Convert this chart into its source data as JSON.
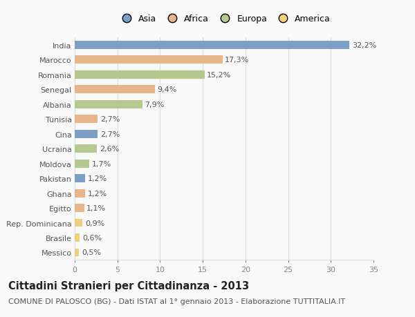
{
  "countries": [
    "India",
    "Marocco",
    "Romania",
    "Senegal",
    "Albania",
    "Tunisia",
    "Cina",
    "Ucraina",
    "Moldova",
    "Pakistan",
    "Ghana",
    "Egitto",
    "Rep. Dominicana",
    "Brasile",
    "Messico"
  ],
  "values": [
    32.2,
    17.3,
    15.2,
    9.4,
    7.9,
    2.7,
    2.7,
    2.6,
    1.7,
    1.2,
    1.2,
    1.1,
    0.9,
    0.6,
    0.5
  ],
  "labels": [
    "32,2%",
    "17,3%",
    "15,2%",
    "9,4%",
    "7,9%",
    "2,7%",
    "2,7%",
    "2,6%",
    "1,7%",
    "1,2%",
    "1,2%",
    "1,1%",
    "0,9%",
    "0,6%",
    "0,5%"
  ],
  "continents": [
    "Asia",
    "Africa",
    "Europa",
    "Africa",
    "Europa",
    "Africa",
    "Asia",
    "Europa",
    "Europa",
    "Asia",
    "Africa",
    "Africa",
    "America",
    "America",
    "America"
  ],
  "colors": {
    "Asia": "#7b9fc7",
    "Africa": "#e8b48a",
    "Europa": "#b5c98e",
    "America": "#f0d080"
  },
  "legend_order": [
    "Asia",
    "Africa",
    "Europa",
    "America"
  ],
  "title": "Cittadini Stranieri per Cittadinanza - 2013",
  "subtitle": "COMUNE DI PALOSCO (BG) - Dati ISTAT al 1° gennaio 2013 - Elaborazione TUTTITALIA.IT",
  "xlim": [
    0,
    35
  ],
  "xticks": [
    0,
    5,
    10,
    15,
    20,
    25,
    30,
    35
  ],
  "background_color": "#f9f9f9",
  "bar_height": 0.55,
  "grid_color": "#dddddd",
  "title_fontsize": 10.5,
  "subtitle_fontsize": 8,
  "tick_label_fontsize": 8,
  "bar_label_fontsize": 8,
  "legend_fontsize": 9
}
